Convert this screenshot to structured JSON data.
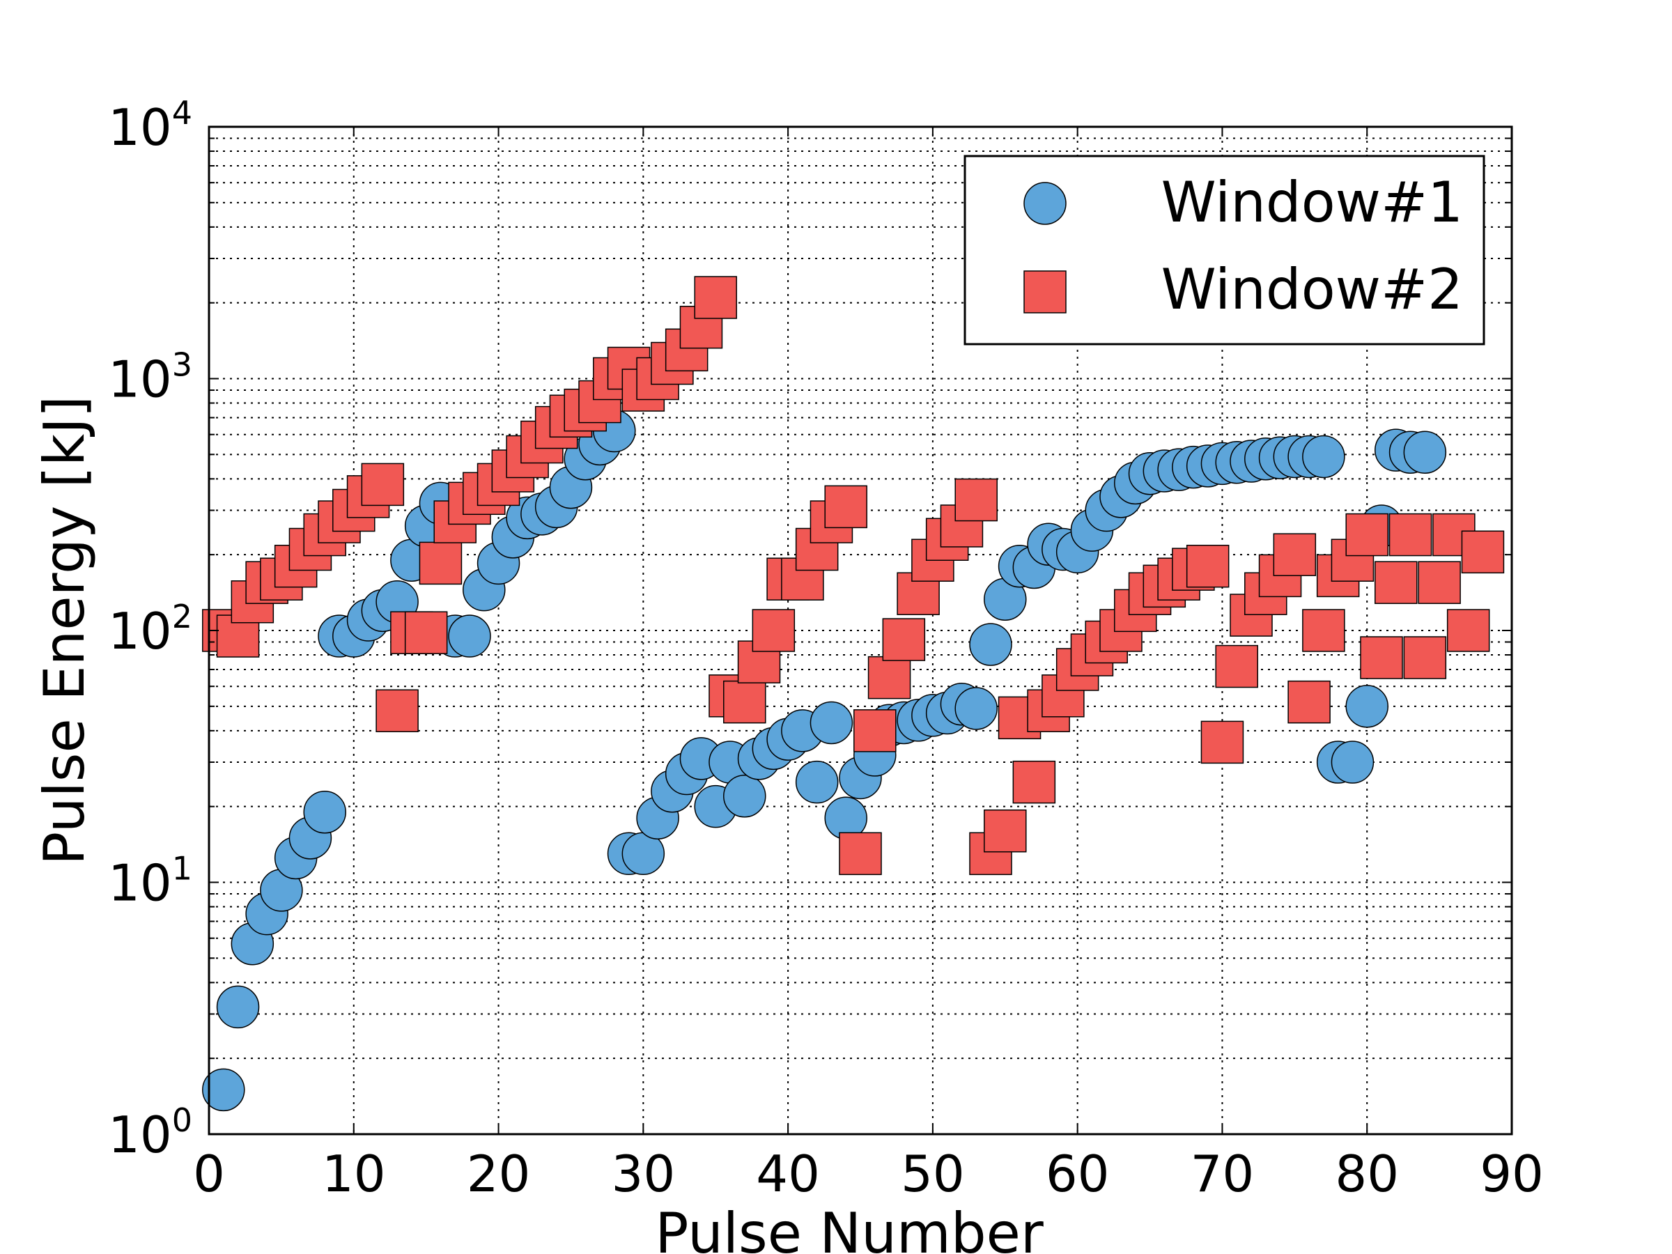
{
  "chart_data": {
    "type": "scatter",
    "title": "",
    "xlabel": "Pulse Number",
    "ylabel": "Pulse Energy [kJ]",
    "xlim": [
      0,
      90
    ],
    "ylim": [
      1,
      10000
    ],
    "yscale": "log",
    "grid": true,
    "legend_position": "top-right",
    "x_ticks": [
      "0",
      "10",
      "20",
      "30",
      "40",
      "50",
      "60",
      "70",
      "80",
      "90"
    ],
    "y_ticks": [
      {
        "base": "10",
        "exp": "0"
      },
      {
        "base": "10",
        "exp": "1"
      },
      {
        "base": "10",
        "exp": "2"
      },
      {
        "base": "10",
        "exp": "3"
      },
      {
        "base": "10",
        "exp": "4"
      }
    ],
    "series": [
      {
        "name": "Window#1",
        "marker": "circle",
        "color": "#5DA5DA",
        "points": [
          [
            1,
            1.5
          ],
          [
            2,
            3.2
          ],
          [
            3,
            5.7
          ],
          [
            4,
            7.5
          ],
          [
            5,
            9.3
          ],
          [
            6,
            12.5
          ],
          [
            7,
            15
          ],
          [
            8,
            19
          ],
          [
            9,
            95
          ],
          [
            10,
            95
          ],
          [
            11,
            110
          ],
          [
            12,
            120
          ],
          [
            13,
            130
          ],
          [
            14,
            190
          ],
          [
            15,
            260
          ],
          [
            16,
            320
          ],
          [
            17,
            95
          ],
          [
            18,
            95
          ],
          [
            19,
            145
          ],
          [
            20,
            185
          ],
          [
            21,
            235
          ],
          [
            22,
            280
          ],
          [
            23,
            290
          ],
          [
            24,
            310
          ],
          [
            25,
            370
          ],
          [
            26,
            480
          ],
          [
            27,
            550
          ],
          [
            28,
            620
          ],
          [
            29,
            13
          ],
          [
            30,
            13
          ],
          [
            31,
            18
          ],
          [
            32,
            23
          ],
          [
            33,
            27
          ],
          [
            34,
            31
          ],
          [
            35,
            20
          ],
          [
            36,
            30
          ],
          [
            37,
            22
          ],
          [
            38,
            31
          ],
          [
            39,
            34
          ],
          [
            40,
            37
          ],
          [
            41,
            40
          ],
          [
            42,
            25
          ],
          [
            43,
            43
          ],
          [
            44,
            18
          ],
          [
            45,
            26
          ],
          [
            46,
            32
          ],
          [
            47,
            42
          ],
          [
            48,
            43
          ],
          [
            49,
            44
          ],
          [
            50,
            46
          ],
          [
            51,
            47
          ],
          [
            52,
            51
          ],
          [
            53,
            49
          ],
          [
            54,
            88
          ],
          [
            55,
            133
          ],
          [
            56,
            180
          ],
          [
            57,
            178
          ],
          [
            58,
            220
          ],
          [
            59,
            210
          ],
          [
            60,
            205
          ],
          [
            61,
            250
          ],
          [
            62,
            300
          ],
          [
            63,
            340
          ],
          [
            64,
            385
          ],
          [
            65,
            420
          ],
          [
            66,
            430
          ],
          [
            67,
            435
          ],
          [
            68,
            445
          ],
          [
            69,
            450
          ],
          [
            70,
            460
          ],
          [
            71,
            465
          ],
          [
            72,
            470
          ],
          [
            73,
            480
          ],
          [
            74,
            485
          ],
          [
            75,
            490
          ],
          [
            76,
            490
          ],
          [
            77,
            490
          ],
          [
            78,
            30
          ],
          [
            79,
            30
          ],
          [
            80,
            50
          ],
          [
            81,
            260
          ],
          [
            82,
            520
          ],
          [
            83,
            510
          ],
          [
            84,
            510
          ]
        ]
      },
      {
        "name": "Window#2",
        "marker": "square",
        "color": "#F15854",
        "points": [
          [
            1,
            100
          ],
          [
            2,
            95
          ],
          [
            3,
            130
          ],
          [
            4,
            155
          ],
          [
            5,
            160
          ],
          [
            6,
            180
          ],
          [
            7,
            210
          ],
          [
            8,
            240
          ],
          [
            9,
            270
          ],
          [
            10,
            300
          ],
          [
            11,
            340
          ],
          [
            12,
            380
          ],
          [
            13,
            48
          ],
          [
            14,
            98
          ],
          [
            15,
            98
          ],
          [
            16,
            185
          ],
          [
            17,
            270
          ],
          [
            18,
            320
          ],
          [
            19,
            350
          ],
          [
            20,
            380
          ],
          [
            21,
            430
          ],
          [
            22,
            490
          ],
          [
            23,
            560
          ],
          [
            24,
            640
          ],
          [
            25,
            710
          ],
          [
            26,
            750
          ],
          [
            27,
            810
          ],
          [
            28,
            1000
          ],
          [
            29,
            1100
          ],
          [
            30,
            900
          ],
          [
            31,
            1000
          ],
          [
            32,
            1150
          ],
          [
            33,
            1300
          ],
          [
            34,
            1600
          ],
          [
            35,
            2100
          ],
          [
            36,
            55
          ],
          [
            37,
            52
          ],
          [
            38,
            75
          ],
          [
            39,
            100
          ],
          [
            40,
            160
          ],
          [
            41,
            160
          ],
          [
            42,
            210
          ],
          [
            43,
            270
          ],
          [
            44,
            310
          ],
          [
            45,
            13
          ],
          [
            46,
            40
          ],
          [
            47,
            65
          ],
          [
            48,
            92
          ],
          [
            49,
            140
          ],
          [
            50,
            190
          ],
          [
            51,
            230
          ],
          [
            52,
            260
          ],
          [
            53,
            330
          ],
          [
            54,
            13
          ],
          [
            55,
            16
          ],
          [
            56,
            45
          ],
          [
            57,
            25
          ],
          [
            58,
            48
          ],
          [
            59,
            55
          ],
          [
            60,
            70
          ],
          [
            61,
            80
          ],
          [
            62,
            90
          ],
          [
            63,
            100
          ],
          [
            64,
            120
          ],
          [
            65,
            140
          ],
          [
            66,
            150
          ],
          [
            67,
            160
          ],
          [
            68,
            175
          ],
          [
            69,
            180
          ],
          [
            70,
            36
          ],
          [
            71,
            72
          ],
          [
            72,
            115
          ],
          [
            73,
            140
          ],
          [
            74,
            165
          ],
          [
            75,
            200
          ],
          [
            76,
            52
          ],
          [
            77,
            100
          ],
          [
            78,
            165
          ],
          [
            79,
            190
          ],
          [
            80,
            240
          ],
          [
            81,
            78
          ],
          [
            82,
            155
          ],
          [
            83,
            240
          ],
          [
            84,
            78
          ],
          [
            85,
            155
          ],
          [
            86,
            240
          ],
          [
            87,
            100
          ],
          [
            88,
            205
          ]
        ]
      }
    ]
  }
}
